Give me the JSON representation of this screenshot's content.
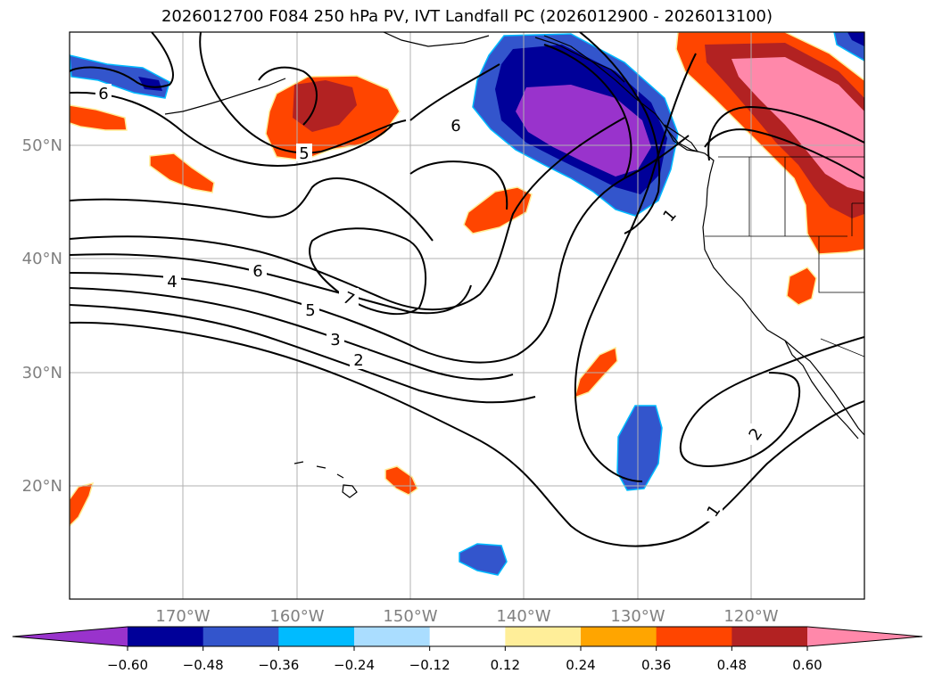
{
  "title": "2026012700 F084 250 hPa PV, IVT Landfall PC (2026012900 - 2026013100)",
  "lat_labels": [
    "50°N",
    "40°N",
    "30°N",
    "20°N"
  ],
  "lon_labels": [
    "170°W",
    "160°W",
    "150°W",
    "140°W",
    "130°W",
    "120°W"
  ],
  "contour_labels": [
    "6",
    "5",
    "6",
    "6",
    "4",
    "5",
    "7",
    "3",
    "2",
    "1",
    "2",
    "1"
  ],
  "colorbar": {
    "ticks": [
      "−0.60",
      "−0.48",
      "−0.36",
      "−0.24",
      "−0.12",
      "0.12",
      "0.24",
      "0.36",
      "0.48",
      "0.60"
    ],
    "colors": [
      "#9933cc",
      "#000099",
      "#3355cc",
      "#00bbff",
      "#aaddff",
      "#ffffff",
      "#ffee99",
      "#ffa500",
      "#ff4500",
      "#b22222",
      "#ff88aa"
    ]
  },
  "colors": {
    "purple": "#9933cc",
    "navy": "#000099",
    "blue": "#3355cc",
    "cyan": "#00bbff",
    "lightblue": "#aaddff",
    "yellow": "#ffee99",
    "orange": "#ffa500",
    "red_orange": "#ff4500",
    "dark_red": "#b22222",
    "pink": "#ff88aa"
  }
}
